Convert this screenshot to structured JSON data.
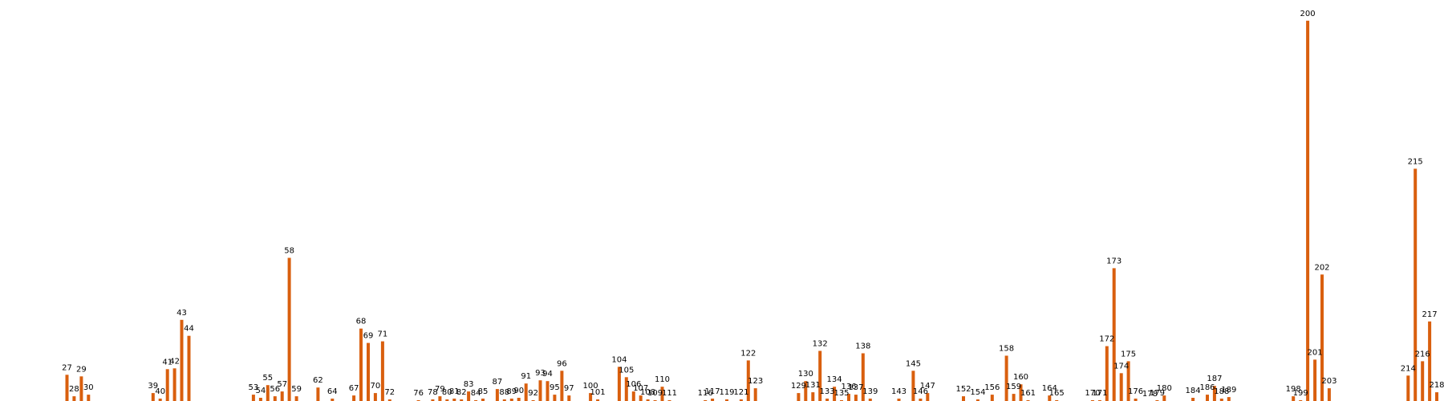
{
  "chart_data": {
    "type": "bar",
    "color": "#d95f0e",
    "title": "",
    "xlabel": "",
    "ylabel": "",
    "axes_visible": false,
    "grid": false,
    "bars": [
      {
        "x": 27,
        "label": "27",
        "value": 35
      },
      {
        "x": 28,
        "label": "28",
        "value": 8
      },
      {
        "x": 29,
        "label": "29",
        "value": 33
      },
      {
        "x": 30,
        "label": "30",
        "value": 10
      },
      {
        "x": 39,
        "label": "39",
        "value": 12
      },
      {
        "x": 40,
        "label": "40",
        "value": 5
      },
      {
        "x": 41,
        "label": "41",
        "value": 42
      },
      {
        "x": 42,
        "label": "42",
        "value": 43
      },
      {
        "x": 43,
        "label": "43",
        "value": 104
      },
      {
        "x": 44,
        "label": "44",
        "value": 84
      },
      {
        "x": 53,
        "label": "53",
        "value": 10
      },
      {
        "x": 54,
        "label": "54",
        "value": 6
      },
      {
        "x": 55,
        "label": "55",
        "value": 22
      },
      {
        "x": 56,
        "label": "56",
        "value": 8
      },
      {
        "x": 57,
        "label": "57",
        "value": 14
      },
      {
        "x": 58,
        "label": "58",
        "value": 182
      },
      {
        "x": 59,
        "label": "59",
        "value": 8
      },
      {
        "x": 62,
        "label": "62",
        "value": 19
      },
      {
        "x": 64,
        "label": "64",
        "value": 5
      },
      {
        "x": 67,
        "label": "67",
        "value": 9
      },
      {
        "x": 68,
        "label": "68",
        "value": 93
      },
      {
        "x": 69,
        "label": "69",
        "value": 75
      },
      {
        "x": 70,
        "label": "70",
        "value": 12
      },
      {
        "x": 71,
        "label": "71",
        "value": 77
      },
      {
        "x": 72,
        "label": "72",
        "value": 4
      },
      {
        "x": 76,
        "label": "76",
        "value": 3
      },
      {
        "x": 78,
        "label": "78",
        "value": 4
      },
      {
        "x": 79,
        "label": "79",
        "value": 8
      },
      {
        "x": 80,
        "label": "80",
        "value": 4
      },
      {
        "x": 81,
        "label": "81",
        "value": 5
      },
      {
        "x": 82,
        "label": "82",
        "value": 4
      },
      {
        "x": 83,
        "label": "83",
        "value": 14
      },
      {
        "x": 84,
        "label": "84",
        "value": 3
      },
      {
        "x": 85,
        "label": "85",
        "value": 5
      },
      {
        "x": 87,
        "label": "87",
        "value": 17
      },
      {
        "x": 88,
        "label": "88",
        "value": 4
      },
      {
        "x": 89,
        "label": "89",
        "value": 5
      },
      {
        "x": 90,
        "label": "90",
        "value": 6
      },
      {
        "x": 91,
        "label": "91",
        "value": 24
      },
      {
        "x": 92,
        "label": "92",
        "value": 3
      },
      {
        "x": 93,
        "label": "93",
        "value": 28
      },
      {
        "x": 94,
        "label": "94",
        "value": 27
      },
      {
        "x": 95,
        "label": "95",
        "value": 10
      },
      {
        "x": 96,
        "label": "96",
        "value": 40
      },
      {
        "x": 97,
        "label": "97",
        "value": 9
      },
      {
        "x": 100,
        "label": "100",
        "value": 12
      },
      {
        "x": 101,
        "label": "101",
        "value": 4
      },
      {
        "x": 104,
        "label": "104",
        "value": 45
      },
      {
        "x": 105,
        "label": "105",
        "value": 32
      },
      {
        "x": 106,
        "label": "106",
        "value": 14
      },
      {
        "x": 107,
        "label": "107",
        "value": 9
      },
      {
        "x": 108,
        "label": "108",
        "value": 4
      },
      {
        "x": 109,
        "label": "109",
        "value": 3
      },
      {
        "x": 110,
        "label": "110",
        "value": 20
      },
      {
        "x": 111,
        "label": "111",
        "value": 3
      },
      {
        "x": 116,
        "label": "116",
        "value": 3
      },
      {
        "x": 117,
        "label": "117",
        "value": 5
      },
      {
        "x": 119,
        "label": "119",
        "value": 4
      },
      {
        "x": 121,
        "label": "121",
        "value": 4
      },
      {
        "x": 122,
        "label": "122",
        "value": 53
      },
      {
        "x": 123,
        "label": "123",
        "value": 18
      },
      {
        "x": 129,
        "label": "129",
        "value": 12
      },
      {
        "x": 130,
        "label": "130",
        "value": 27
      },
      {
        "x": 131,
        "label": "131",
        "value": 13
      },
      {
        "x": 132,
        "label": "132",
        "value": 65
      },
      {
        "x": 133,
        "label": "133",
        "value": 5
      },
      {
        "x": 134,
        "label": "134",
        "value": 20
      },
      {
        "x": 135,
        "label": "135",
        "value": 3
      },
      {
        "x": 136,
        "label": "136",
        "value": 11
      },
      {
        "x": 137,
        "label": "137",
        "value": 10
      },
      {
        "x": 138,
        "label": "138",
        "value": 62
      },
      {
        "x": 139,
        "label": "139",
        "value": 5
      },
      {
        "x": 143,
        "label": "143",
        "value": 5
      },
      {
        "x": 145,
        "label": "145",
        "value": 40
      },
      {
        "x": 146,
        "label": "146",
        "value": 5
      },
      {
        "x": 147,
        "label": "147",
        "value": 12
      },
      {
        "x": 152,
        "label": "152",
        "value": 8
      },
      {
        "x": 154,
        "label": "154",
        "value": 4
      },
      {
        "x": 156,
        "label": "156",
        "value": 10
      },
      {
        "x": 158,
        "label": "158",
        "value": 59
      },
      {
        "x": 159,
        "label": "159",
        "value": 11
      },
      {
        "x": 160,
        "label": "160",
        "value": 23
      },
      {
        "x": 161,
        "label": "161",
        "value": 3
      },
      {
        "x": 164,
        "label": "164",
        "value": 9
      },
      {
        "x": 165,
        "label": "165",
        "value": 3
      },
      {
        "x": 170,
        "label": "170",
        "value": 3
      },
      {
        "x": 171,
        "label": "171",
        "value": 3
      },
      {
        "x": 172,
        "label": "172",
        "value": 71
      },
      {
        "x": 173,
        "label": "173",
        "value": 169
      },
      {
        "x": 174,
        "label": "174",
        "value": 37
      },
      {
        "x": 175,
        "label": "175",
        "value": 52
      },
      {
        "x": 176,
        "label": "176",
        "value": 5
      },
      {
        "x": 178,
        "label": "178",
        "value": 2
      },
      {
        "x": 179,
        "label": "179",
        "value": 3
      },
      {
        "x": 180,
        "label": "180",
        "value": 9
      },
      {
        "x": 184,
        "label": "184",
        "value": 6
      },
      {
        "x": 186,
        "label": "186",
        "value": 10
      },
      {
        "x": 187,
        "label": "187",
        "value": 21
      },
      {
        "x": 188,
        "label": "188",
        "value": 5
      },
      {
        "x": 189,
        "label": "189",
        "value": 7
      },
      {
        "x": 198,
        "label": "198",
        "value": 8
      },
      {
        "x": 199,
        "label": "199",
        "value": 3
      },
      {
        "x": 200,
        "label": "200",
        "value": 480
      },
      {
        "x": 201,
        "label": "201",
        "value": 54
      },
      {
        "x": 202,
        "label": "202",
        "value": 161
      },
      {
        "x": 203,
        "label": "203",
        "value": 18
      },
      {
        "x": 214,
        "label": "214",
        "value": 34
      },
      {
        "x": 215,
        "label": "215",
        "value": 294
      },
      {
        "x": 216,
        "label": "216",
        "value": 52
      },
      {
        "x": 217,
        "label": "217",
        "value": 102
      },
      {
        "x": 218,
        "label": "218",
        "value": 13
      }
    ]
  }
}
